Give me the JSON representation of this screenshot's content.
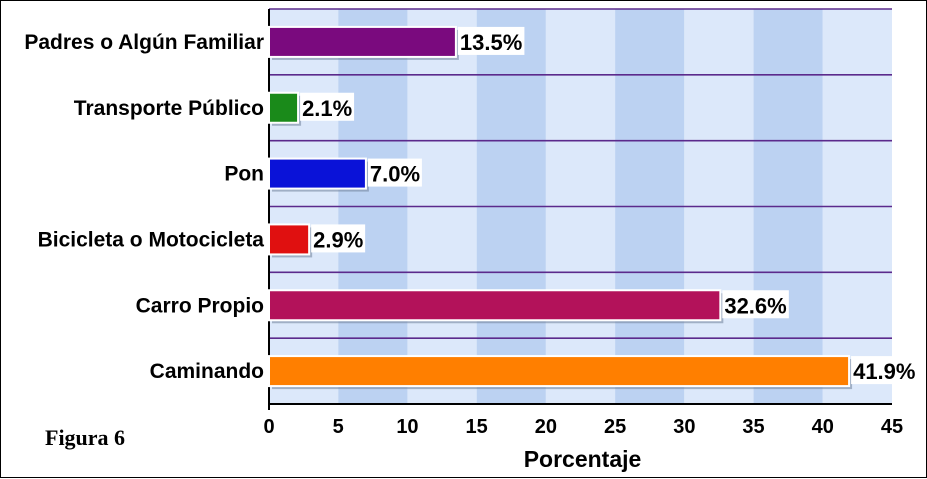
{
  "caption": "Figura 6",
  "chart_data": {
    "type": "bar",
    "orientation": "horizontal",
    "categories": [
      "Padres o Algún Familiar",
      "Transporte Público",
      "Pon",
      "Bicicleta o Motocicleta",
      "Carro Propio",
      "Caminando"
    ],
    "values": [
      13.5,
      2.1,
      7.0,
      2.9,
      32.6,
      41.9
    ],
    "value_labels": [
      "13.5%",
      "2.1%",
      "7.0%",
      "2.9%",
      "32.6%",
      "41.9%"
    ],
    "colors": [
      "#7a0a7e",
      "#1a8a1a",
      "#0a12d8",
      "#e01010",
      "#b3125a",
      "#ff7f00"
    ],
    "xlabel": "Porcentaje",
    "ylabel": "",
    "xlim": [
      0,
      45
    ],
    "xticks": [
      "0",
      "5",
      "10",
      "15",
      "20",
      "25",
      "30",
      "35",
      "40",
      "45"
    ],
    "grid": true,
    "background_colors": [
      "#dce8fa",
      "#bcd2f2"
    ],
    "separator_color": "#5b2a8c"
  }
}
